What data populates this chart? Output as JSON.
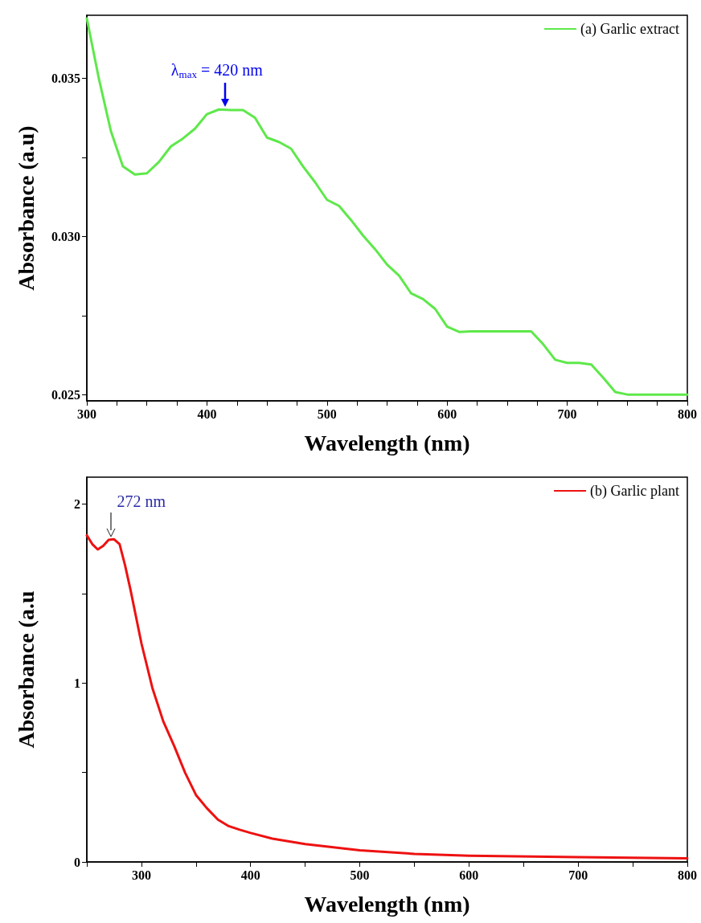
{
  "chart_data": [
    {
      "type": "line",
      "xlabel": "Wavelength (nm)",
      "ylabel": "Absorbance (a.u)",
      "x": [
        300,
        310,
        320,
        330,
        340,
        350,
        360,
        370,
        380,
        390,
        400,
        410,
        420,
        430,
        440,
        450,
        460,
        470,
        480,
        490,
        500,
        510,
        520,
        530,
        540,
        550,
        560,
        570,
        580,
        590,
        600,
        610,
        620,
        640,
        660,
        670,
        680,
        690,
        700,
        710,
        720,
        730,
        740,
        750,
        775,
        800
      ],
      "series": [
        {
          "name": "(a) Garlic extract",
          "color": "#5ee84a",
          "values": [
            0.0369,
            0.035,
            0.03334,
            0.03222,
            0.03196,
            0.032,
            0.03236,
            0.03285,
            0.0331,
            0.03341,
            0.03387,
            0.03402,
            0.034,
            0.034,
            0.03376,
            0.03313,
            0.03299,
            0.03278,
            0.03222,
            0.03172,
            0.03116,
            0.03097,
            0.03052,
            0.03003,
            0.0296,
            0.02911,
            0.02876,
            0.0282,
            0.02802,
            0.02771,
            0.02715,
            0.02698,
            0.027,
            0.027,
            0.027,
            0.027,
            0.02659,
            0.0261,
            0.026,
            0.026,
            0.02595,
            0.02553,
            0.02508,
            0.025,
            0.025,
            0.025
          ]
        }
      ],
      "xlim": [
        300,
        800
      ],
      "ylim": [
        0.0248,
        0.037
      ],
      "xticks": [
        300,
        {
          "value": 325,
          "label": null
        },
        {
          "value": 350,
          "label": null
        },
        {
          "value": 375,
          "label": null
        },
        400,
        {
          "value": 425,
          "label": null
        },
        {
          "value": 450,
          "label": null
        },
        {
          "value": 475,
          "label": null
        },
        500,
        {
          "value": 525,
          "label": null
        },
        {
          "value": 550,
          "label": null
        },
        {
          "value": 575,
          "label": null
        },
        600,
        {
          "value": 625,
          "label": null
        },
        {
          "value": 650,
          "label": null
        },
        {
          "value": 675,
          "label": null
        },
        700,
        {
          "value": 725,
          "label": null
        },
        {
          "value": 750,
          "label": null
        },
        {
          "value": 775,
          "label": null
        },
        800
      ],
      "yticks": [
        {
          "value": 0.025,
          "label": "0.025"
        },
        {
          "value": 0.0275,
          "label": null
        },
        {
          "value": 0.03,
          "label": "0.030"
        },
        {
          "value": 0.0325,
          "label": null
        },
        {
          "value": 0.035,
          "label": "0.035"
        }
      ],
      "legend": "top right",
      "marker": "none",
      "line_style": "solid",
      "annotations": [
        {
          "text": "λ$_{max}$ = 420 nm",
          "x": 415,
          "y": 0.034
        }
      ]
    },
    {
      "type": "line",
      "xlabel": "Wavelength (nm)",
      "ylabel": "Absorbance (a.u",
      "x": [
        250,
        255,
        260,
        265,
        270,
        275,
        280,
        285,
        290,
        300,
        310,
        320,
        330,
        340,
        350,
        360,
        370,
        380,
        390,
        400,
        420,
        450,
        500,
        550,
        600,
        700,
        800
      ],
      "series": [
        {
          "name": "(b) Garlic plant",
          "color": "#ee1111",
          "values": [
            1.825,
            1.776,
            1.746,
            1.766,
            1.8,
            1.803,
            1.776,
            1.658,
            1.521,
            1.222,
            0.973,
            0.786,
            0.648,
            0.499,
            0.374,
            0.3,
            0.237,
            0.2,
            0.18,
            0.162,
            0.13,
            0.1,
            0.065,
            0.045,
            0.035,
            0.027,
            0.02
          ]
        }
      ],
      "xlim": [
        250,
        800
      ],
      "ylim": [
        0,
        2.15
      ],
      "xticks": [
        {
          "value": 250,
          "label": null
        },
        300,
        {
          "value": 350,
          "label": null
        },
        400,
        {
          "value": 450,
          "label": null
        },
        500,
        {
          "value": 550,
          "label": null
        },
        600,
        {
          "value": 650,
          "label": null
        },
        700,
        {
          "value": 750,
          "label": null
        },
        800
      ],
      "yticks": [
        0,
        {
          "value": 0.5,
          "label": null
        },
        1,
        {
          "value": 1.5,
          "label": null
        },
        2
      ],
      "legend": "top right",
      "marker": "none",
      "line_style": "solid",
      "annotations": [
        {
          "text": "272 nm",
          "x": 272,
          "y": 1.8
        }
      ]
    }
  ]
}
